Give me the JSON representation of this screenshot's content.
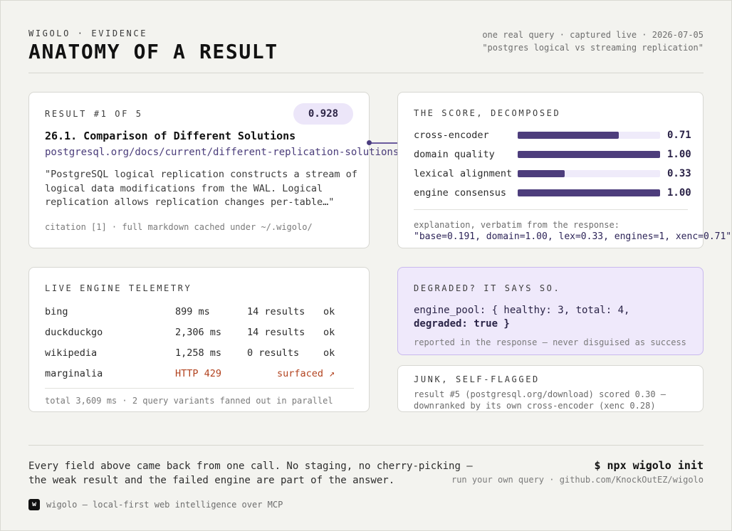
{
  "header": {
    "eyebrow": "WIGOLO · EVIDENCE",
    "title": "ANATOMY OF A RESULT",
    "meta_line1": "one real query · captured live · 2026-07-05",
    "meta_line2": "\"postgres logical vs streaming replication\""
  },
  "result": {
    "heading": "RESULT #1 OF 5",
    "score": "0.928",
    "title": "26.1. Comparison of Different Solutions",
    "url": "postgresql.org/docs/current/different-replication-solutions",
    "quote": "\"PostgreSQL logical replication constructs a stream of logical data modifications from the WAL. Logical replication allows replication changes per-table…\"",
    "citation": "citation [1] · full markdown cached under ~/.wigolo/"
  },
  "score": {
    "heading": "THE SCORE, DECOMPOSED",
    "rows": [
      {
        "label": "cross-encoder",
        "value": "0.71",
        "fraction": 0.71
      },
      {
        "label": "domain quality",
        "value": "1.00",
        "fraction": 1.0
      },
      {
        "label": "lexical alignment",
        "value": "0.33",
        "fraction": 0.33
      },
      {
        "label": "engine consensus",
        "value": "1.00",
        "fraction": 1.0
      }
    ],
    "explanation_label": "explanation, verbatim from the response:",
    "explanation": "\"base=0.191, domain=1.00, lex=0.33, engines=1, xenc=0.71\""
  },
  "telemetry": {
    "heading": "LIVE ENGINE TELEMETRY",
    "rows": [
      {
        "engine": "bing",
        "latency": "899 ms",
        "results": "14 results",
        "status": "ok"
      },
      {
        "engine": "duckduckgo",
        "latency": "2,306 ms",
        "results": "14 results",
        "status": "ok"
      },
      {
        "engine": "wikipedia",
        "latency": "1,258 ms",
        "results": "0 results",
        "status": "ok"
      }
    ],
    "error_row": {
      "engine": "marginalia",
      "latency": "HTTP 429",
      "status": "surfaced ↗"
    },
    "footer": "total 3,609 ms · 2 query variants fanned out in parallel"
  },
  "degraded": {
    "heading": "DEGRADED? IT SAYS SO.",
    "code_line1": "engine_pool: { healthy: 3, total: 4,",
    "code_line2": "degraded: true }",
    "note": "reported in the response — never disguised as success"
  },
  "junk": {
    "heading": "JUNK, SELF-FLAGGED",
    "line1": "result #5 (postgresql.org/download) scored 0.30 —",
    "line2": "downranked by its own cross-encoder (xenc 0.28)"
  },
  "footer": {
    "line1": "Every field above came back from one call. No staging, no cherry-picking —",
    "line2": "the weak result and the failed engine are part of the answer.",
    "cta": "$ npx wigolo init",
    "cta_sub": "run your own query · github.com/KnockOutEZ/wigolo",
    "logo_letter": "w",
    "brand": "wigolo — local-first web intelligence over MCP"
  },
  "colors": {
    "accent": "#4d3d7c",
    "accent_light": "#efe9fb",
    "error": "#b2431f"
  }
}
